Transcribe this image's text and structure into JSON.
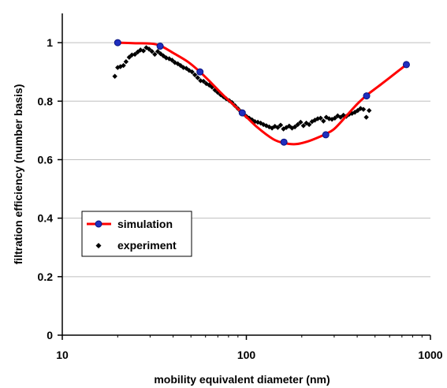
{
  "chart_data": {
    "type": "scatter",
    "xlabel": "mobility equivalent diameter (nm)",
    "ylabel": "filtration efficiency (number basis)",
    "xscale": "log",
    "xlim": [
      10,
      1000
    ],
    "ylim": [
      0,
      1.1
    ],
    "x_ticks": [
      "10",
      "100",
      "1000"
    ],
    "y_ticks": [
      "0",
      "0.2",
      "0.4",
      "0.6",
      "0.8",
      "1"
    ],
    "grid": "horizontal",
    "legend_position": "lower-left",
    "series": [
      {
        "name": "simulation",
        "type": "line",
        "color": "#ff0000",
        "marker_color": "#1f2fbf",
        "line_x": [
          20,
          25,
          30,
          34,
          40,
          48,
          56,
          65,
          75,
          95,
          115,
          140,
          160,
          185,
          215,
          250,
          270,
          300,
          350,
          400,
          450,
          520,
          600,
          740
        ],
        "line_y": [
          1.0,
          0.998,
          0.997,
          0.99,
          0.965,
          0.935,
          0.9,
          0.86,
          0.82,
          0.76,
          0.71,
          0.67,
          0.657,
          0.653,
          0.662,
          0.678,
          0.688,
          0.705,
          0.75,
          0.79,
          0.82,
          0.85,
          0.88,
          0.925
        ],
        "x": [
          20,
          34,
          56,
          95,
          160,
          270,
          450,
          740
        ],
        "y": [
          1.0,
          0.988,
          0.9,
          0.76,
          0.66,
          0.685,
          0.818,
          0.925
        ]
      },
      {
        "name": "experiment",
        "type": "scatter",
        "color": "#000000",
        "x": [
          19.3,
          20.0,
          20.7,
          21.5,
          22.2,
          23.1,
          23.9,
          24.8,
          25.7,
          26.6,
          27.6,
          28.6,
          29.6,
          30.7,
          31.8,
          33.0,
          34.2,
          35.4,
          36.7,
          38.1,
          39.5,
          40.9,
          42.4,
          43.9,
          45.5,
          47.2,
          48.9,
          50.7,
          52.5,
          54.4,
          56.4,
          58.5,
          60.6,
          62.8,
          65.1,
          67.5,
          69.9,
          72.5,
          75.1,
          77.8,
          80.7,
          83.6,
          86.6,
          89.8,
          93.1,
          96.5,
          100,
          103.6,
          107.4,
          111.3,
          115.4,
          119.6,
          123.9,
          128.4,
          133.1,
          137.9,
          142.9,
          148.1,
          153.5,
          159.1,
          164.9,
          170.9,
          177.1,
          183.5,
          190.2,
          197.1,
          204.2,
          211.7,
          219.4,
          227.4,
          235.6,
          244.2,
          253.1,
          262.3,
          271.8,
          281.7,
          291.9,
          302.5,
          313.5,
          324.9,
          336.8,
          349.0,
          361.7,
          374.9,
          388.5,
          402.6,
          417.2,
          432.5,
          448.3,
          464.4
        ],
        "y": [
          0.885,
          0.915,
          0.918,
          0.922,
          0.935,
          0.95,
          0.958,
          0.96,
          0.968,
          0.975,
          0.972,
          0.983,
          0.978,
          0.97,
          0.96,
          0.97,
          0.962,
          0.955,
          0.948,
          0.945,
          0.94,
          0.932,
          0.928,
          0.922,
          0.915,
          0.912,
          0.905,
          0.9,
          0.89,
          0.88,
          0.87,
          0.868,
          0.86,
          0.855,
          0.848,
          0.838,
          0.83,
          0.822,
          0.815,
          0.808,
          0.802,
          0.795,
          0.785,
          0.775,
          0.765,
          0.756,
          0.748,
          0.742,
          0.736,
          0.73,
          0.728,
          0.725,
          0.72,
          0.716,
          0.712,
          0.708,
          0.714,
          0.71,
          0.718,
          0.705,
          0.71,
          0.715,
          0.708,
          0.712,
          0.72,
          0.728,
          0.716,
          0.725,
          0.72,
          0.73,
          0.735,
          0.74,
          0.742,
          0.732,
          0.745,
          0.74,
          0.738,
          0.742,
          0.75,
          0.745,
          0.752,
          0.748,
          0.755,
          0.758,
          0.762,
          0.768,
          0.775,
          0.772,
          0.745,
          0.768
        ]
      }
    ]
  }
}
